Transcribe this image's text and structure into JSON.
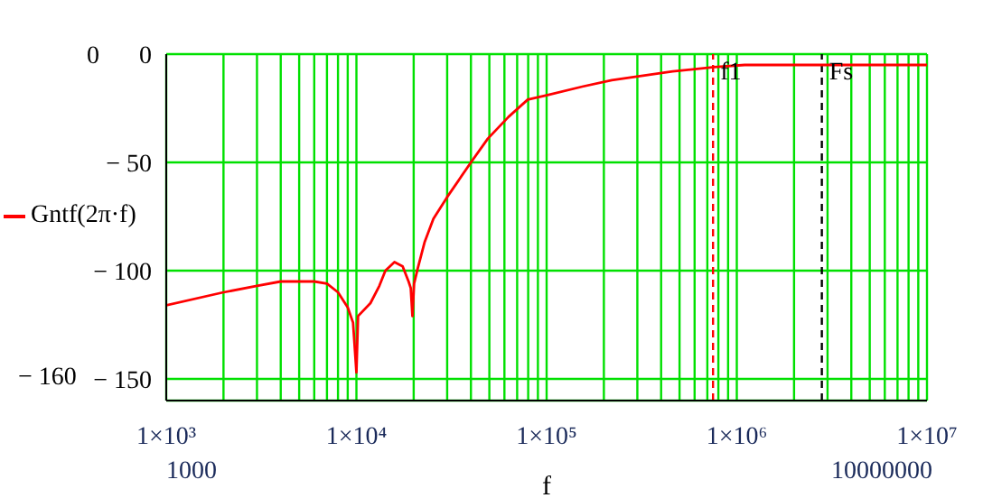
{
  "chart_data": {
    "type": "line",
    "xlabel": "f",
    "log": "x",
    "grid": true,
    "legend": "left",
    "marker": "none",
    "line_style": "solid",
    "xlim": [
      1000,
      10000000
    ],
    "xticks": [
      {
        "value": 1000,
        "label": "1×10³"
      },
      {
        "value": 2000,
        "label": null
      },
      {
        "value": 3000,
        "label": null
      },
      {
        "value": 4000,
        "label": null
      },
      {
        "value": 5000,
        "label": null
      },
      {
        "value": 6000,
        "label": null
      },
      {
        "value": 7000,
        "label": null
      },
      {
        "value": 8000,
        "label": null
      },
      {
        "value": 9000,
        "label": null
      },
      {
        "value": 10000,
        "label": "1×10⁴"
      },
      {
        "value": 20000,
        "label": null
      },
      {
        "value": 30000,
        "label": null
      },
      {
        "value": 40000,
        "label": null
      },
      {
        "value": 50000,
        "label": null
      },
      {
        "value": 60000,
        "label": null
      },
      {
        "value": 70000,
        "label": null
      },
      {
        "value": 80000,
        "label": null
      },
      {
        "value": 90000,
        "label": null
      },
      {
        "value": 100000,
        "label": "1×10⁵"
      },
      {
        "value": 200000,
        "label": null
      },
      {
        "value": 300000,
        "label": null
      },
      {
        "value": 400000,
        "label": null
      },
      {
        "value": 500000,
        "label": null
      },
      {
        "value": 600000,
        "label": null
      },
      {
        "value": 700000,
        "label": null
      },
      {
        "value": 800000,
        "label": null
      },
      {
        "value": 900000,
        "label": null
      },
      {
        "value": 1000000,
        "label": "1×10⁶"
      },
      {
        "value": 2000000,
        "label": null
      },
      {
        "value": 3000000,
        "label": null
      },
      {
        "value": 4000000,
        "label": null
      },
      {
        "value": 5000000,
        "label": null
      },
      {
        "value": 6000000,
        "label": null
      },
      {
        "value": 7000000,
        "label": null
      },
      {
        "value": 8000000,
        "label": null
      },
      {
        "value": 9000000,
        "label": null
      },
      {
        "value": 10000000,
        "label": "1×10⁷"
      }
    ],
    "ylim": [
      -160,
      0
    ],
    "yticks": [
      {
        "value": 0,
        "label": "0"
      },
      {
        "value": -50,
        "label": "− 50"
      },
      {
        "value": -100,
        "label": "− 100"
      },
      {
        "value": -150,
        "label": "− 150"
      }
    ],
    "series": [
      {
        "name": "Gntf(2π·f)",
        "color": "#ff0000",
        "x": [
          1000,
          2000,
          3000,
          4000,
          5000,
          6000,
          7000,
          8000,
          9000,
          9600,
          10000,
          10200,
          11850,
          13200,
          14200,
          15850,
          17500,
          18800,
          19300,
          19700,
          20100,
          21000,
          22800,
          25400,
          30000,
          40000,
          49100,
          63000,
          79600,
          100000,
          154000,
          220000,
          460000,
          760000,
          1100000,
          10000000
        ],
        "values": [
          -116,
          -110,
          -107,
          -105,
          -105,
          -105,
          -106,
          -110,
          -117,
          -124,
          -147,
          -121,
          -115,
          -107,
          -100,
          -96,
          -98,
          -105,
          -108,
          -121,
          -106,
          -99,
          -87,
          -76,
          -66,
          -50,
          -39,
          -29,
          -21,
          -19,
          -15,
          -12,
          -8,
          -6,
          -5,
          -5
        ]
      }
    ],
    "ref_lines": [
      {
        "axis": "x",
        "value": 750000,
        "label": "f1",
        "color": "#ff0000",
        "line_style": "dashed"
      },
      {
        "axis": "x",
        "value": 2800000,
        "label": "Fs",
        "color": "#000000",
        "line_style": "dashed"
      }
    ],
    "annotations": [
      "0",
      "− 160",
      "1000",
      "10000000"
    ]
  }
}
